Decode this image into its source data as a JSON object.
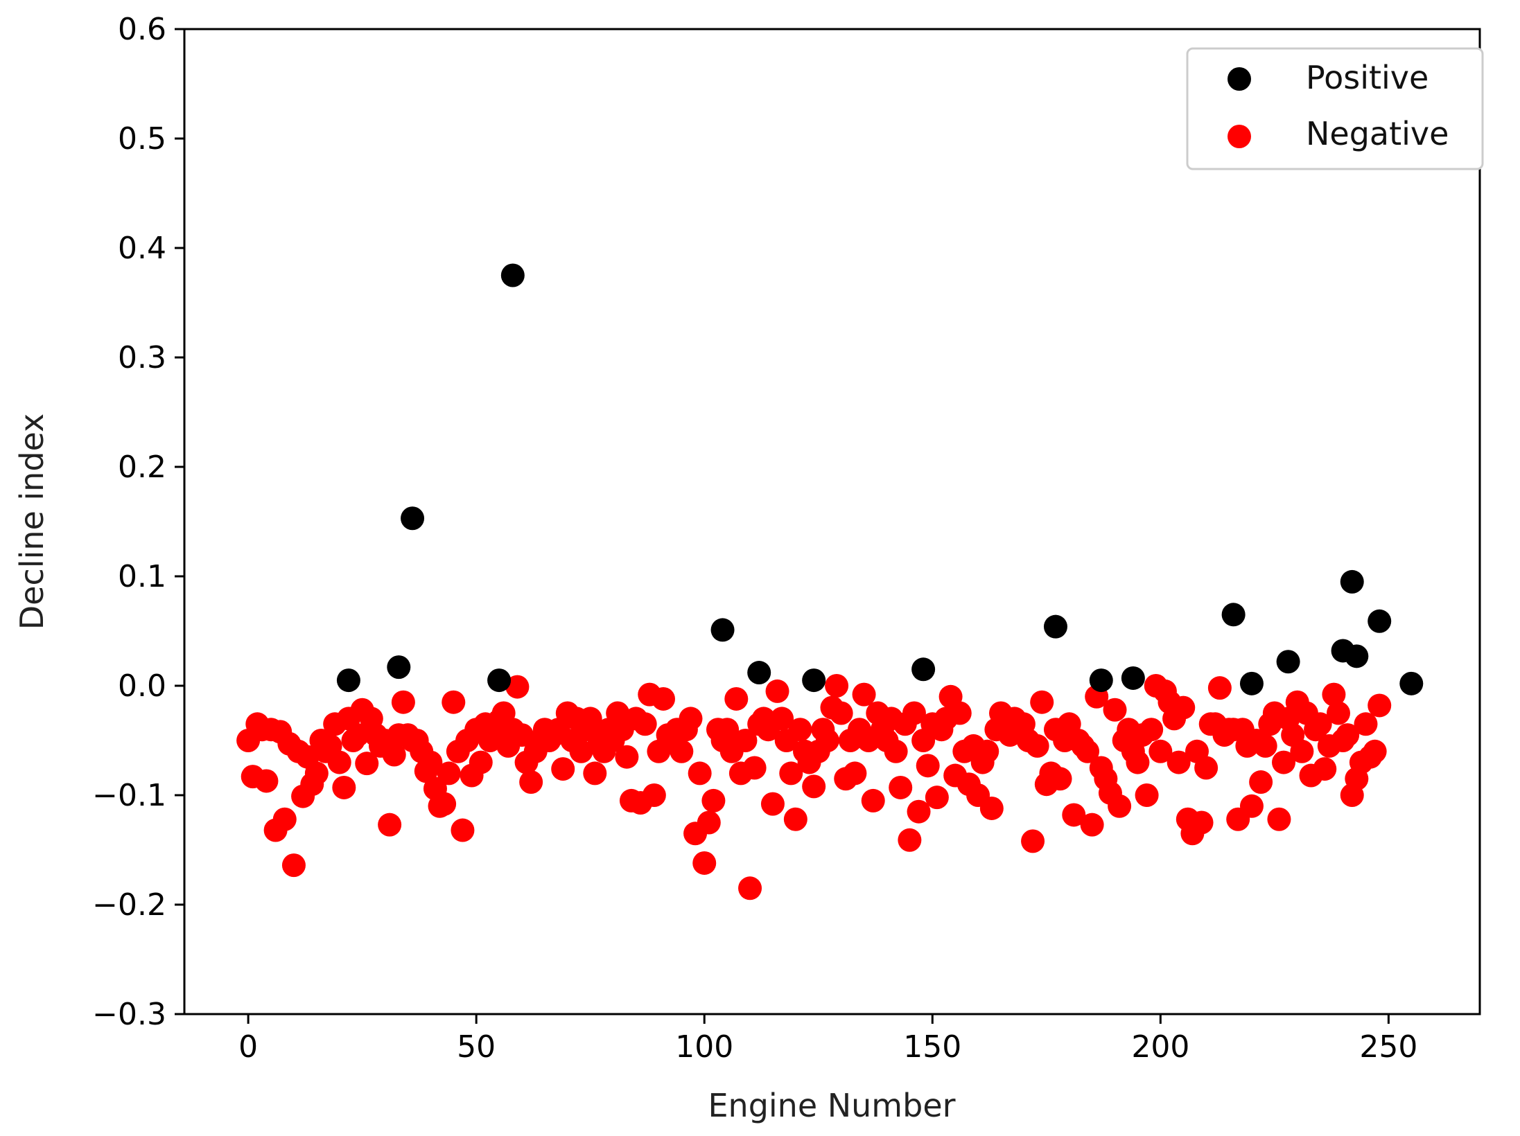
{
  "chart_data": {
    "type": "scatter",
    "title": "",
    "xlabel": "Engine Number",
    "ylabel": "Decline index",
    "xlim": [
      -14,
      270
    ],
    "ylim": [
      -0.3,
      0.6
    ],
    "x_ticks": [
      0,
      50,
      100,
      150,
      200,
      250
    ],
    "x_tick_labels": [
      "0",
      "50",
      "100",
      "150",
      "200",
      "250"
    ],
    "y_ticks": [
      -0.3,
      -0.2,
      -0.1,
      0.0,
      0.1,
      0.2,
      0.3,
      0.4,
      0.5,
      0.6
    ],
    "y_tick_labels": [
      "−0.3",
      "−0.2",
      "−0.1",
      "0.0",
      "0.1",
      "0.2",
      "0.3",
      "0.4",
      "0.5",
      "0.6"
    ],
    "grid": false,
    "legend_position": "top-right",
    "series": [
      {
        "name": "Positive",
        "color": "#000000",
        "points": [
          [
            22,
            0.005
          ],
          [
            33,
            0.017
          ],
          [
            36,
            0.153
          ],
          [
            55,
            0.005
          ],
          [
            58,
            0.375
          ],
          [
            104,
            0.051
          ],
          [
            112,
            0.012
          ],
          [
            124,
            0.005
          ],
          [
            148,
            0.015
          ],
          [
            177,
            0.054
          ],
          [
            187,
            0.005
          ],
          [
            194,
            0.007
          ],
          [
            216,
            0.065
          ],
          [
            220,
            0.002
          ],
          [
            228,
            0.022
          ],
          [
            240,
            0.032
          ],
          [
            242,
            0.095
          ],
          [
            243,
            0.027
          ],
          [
            248,
            0.059
          ],
          [
            255,
            0.002
          ]
        ]
      },
      {
        "name": "Negative",
        "color": "#ff0000",
        "points": [
          [
            0,
            -0.05
          ],
          [
            1,
            -0.083
          ],
          [
            2,
            -0.035
          ],
          [
            3,
            -0.04
          ],
          [
            4,
            -0.087
          ],
          [
            5,
            -0.04
          ],
          [
            6,
            -0.132
          ],
          [
            7,
            -0.042
          ],
          [
            8,
            -0.122
          ],
          [
            9,
            -0.053
          ],
          [
            10,
            -0.164
          ],
          [
            11,
            -0.06
          ],
          [
            12,
            -0.101
          ],
          [
            13,
            -0.065
          ],
          [
            14,
            -0.09
          ],
          [
            15,
            -0.08
          ],
          [
            16,
            -0.05
          ],
          [
            17,
            -0.06
          ],
          [
            18,
            -0.055
          ],
          [
            19,
            -0.035
          ],
          [
            20,
            -0.07
          ],
          [
            21,
            -0.093
          ],
          [
            22,
            -0.03
          ],
          [
            23,
            -0.05
          ],
          [
            24,
            -0.045
          ],
          [
            25,
            -0.022
          ],
          [
            26,
            -0.071
          ],
          [
            27,
            -0.03
          ],
          [
            28,
            -0.045
          ],
          [
            29,
            -0.055
          ],
          [
            30,
            -0.05
          ],
          [
            31,
            -0.127
          ],
          [
            32,
            -0.063
          ],
          [
            33,
            -0.045
          ],
          [
            34,
            -0.015
          ],
          [
            35,
            -0.045
          ],
          [
            36,
            -0.05
          ],
          [
            37,
            -0.05
          ],
          [
            38,
            -0.06
          ],
          [
            39,
            -0.078
          ],
          [
            40,
            -0.07
          ],
          [
            41,
            -0.094
          ],
          [
            42,
            -0.11
          ],
          [
            43,
            -0.108
          ],
          [
            44,
            -0.08
          ],
          [
            45,
            -0.015
          ],
          [
            46,
            -0.06
          ],
          [
            47,
            -0.132
          ],
          [
            48,
            -0.05
          ],
          [
            49,
            -0.082
          ],
          [
            50,
            -0.04
          ],
          [
            51,
            -0.07
          ],
          [
            52,
            -0.035
          ],
          [
            53,
            -0.05
          ],
          [
            54,
            -0.045
          ],
          [
            55,
            -0.032
          ],
          [
            56,
            -0.025
          ],
          [
            57,
            -0.055
          ],
          [
            58,
            -0.04
          ],
          [
            59,
            -0.001
          ],
          [
            60,
            -0.045
          ],
          [
            61,
            -0.07
          ],
          [
            62,
            -0.088
          ],
          [
            63,
            -0.06
          ],
          [
            64,
            -0.05
          ],
          [
            65,
            -0.04
          ],
          [
            66,
            -0.05
          ],
          [
            67,
            -0.045
          ],
          [
            68,
            -0.04
          ],
          [
            69,
            -0.076
          ],
          [
            70,
            -0.025
          ],
          [
            71,
            -0.05
          ],
          [
            72,
            -0.03
          ],
          [
            73,
            -0.06
          ],
          [
            74,
            -0.04
          ],
          [
            75,
            -0.03
          ],
          [
            76,
            -0.08
          ],
          [
            77,
            -0.05
          ],
          [
            78,
            -0.06
          ],
          [
            79,
            -0.04
          ],
          [
            80,
            -0.05
          ],
          [
            81,
            -0.025
          ],
          [
            82,
            -0.04
          ],
          [
            83,
            -0.065
          ],
          [
            84,
            -0.105
          ],
          [
            85,
            -0.03
          ],
          [
            86,
            -0.107
          ],
          [
            87,
            -0.035
          ],
          [
            88,
            -0.008
          ],
          [
            89,
            -0.1
          ],
          [
            90,
            -0.06
          ],
          [
            91,
            -0.012
          ],
          [
            92,
            -0.045
          ],
          [
            93,
            -0.05
          ],
          [
            94,
            -0.04
          ],
          [
            95,
            -0.06
          ],
          [
            96,
            -0.04
          ],
          [
            97,
            -0.03
          ],
          [
            98,
            -0.135
          ],
          [
            99,
            -0.08
          ],
          [
            100,
            -0.162
          ],
          [
            101,
            -0.125
          ],
          [
            102,
            -0.105
          ],
          [
            103,
            -0.04
          ],
          [
            104,
            -0.05
          ],
          [
            105,
            -0.04
          ],
          [
            106,
            -0.06
          ],
          [
            107,
            -0.012
          ],
          [
            108,
            -0.08
          ],
          [
            109,
            -0.05
          ],
          [
            110,
            -0.185
          ],
          [
            111,
            -0.075
          ],
          [
            112,
            -0.035
          ],
          [
            113,
            -0.03
          ],
          [
            114,
            -0.04
          ],
          [
            115,
            -0.108
          ],
          [
            116,
            -0.005
          ],
          [
            117,
            -0.03
          ],
          [
            118,
            -0.05
          ],
          [
            119,
            -0.08
          ],
          [
            120,
            -0.122
          ],
          [
            121,
            -0.04
          ],
          [
            122,
            -0.06
          ],
          [
            123,
            -0.07
          ],
          [
            124,
            -0.092
          ],
          [
            125,
            -0.06
          ],
          [
            126,
            -0.04
          ],
          [
            127,
            -0.05
          ],
          [
            128,
            -0.02
          ],
          [
            129,
            0.0
          ],
          [
            130,
            -0.025
          ],
          [
            131,
            -0.085
          ],
          [
            132,
            -0.05
          ],
          [
            133,
            -0.08
          ],
          [
            134,
            -0.04
          ],
          [
            135,
            -0.008
          ],
          [
            136,
            -0.05
          ],
          [
            137,
            -0.105
          ],
          [
            138,
            -0.025
          ],
          [
            139,
            -0.04
          ],
          [
            140,
            -0.05
          ],
          [
            141,
            -0.03
          ],
          [
            142,
            -0.06
          ],
          [
            143,
            -0.093
          ],
          [
            144,
            -0.035
          ],
          [
            145,
            -0.141
          ],
          [
            146,
            -0.025
          ],
          [
            147,
            -0.115
          ],
          [
            148,
            -0.05
          ],
          [
            149,
            -0.073
          ],
          [
            150,
            -0.035
          ],
          [
            151,
            -0.102
          ],
          [
            152,
            -0.04
          ],
          [
            153,
            -0.03
          ],
          [
            154,
            -0.01
          ],
          [
            155,
            -0.082
          ],
          [
            156,
            -0.025
          ],
          [
            157,
            -0.06
          ],
          [
            158,
            -0.09
          ],
          [
            159,
            -0.055
          ],
          [
            160,
            -0.1
          ],
          [
            161,
            -0.07
          ],
          [
            162,
            -0.06
          ],
          [
            163,
            -0.112
          ],
          [
            164,
            -0.04
          ],
          [
            165,
            -0.025
          ],
          [
            166,
            -0.035
          ],
          [
            167,
            -0.045
          ],
          [
            168,
            -0.03
          ],
          [
            169,
            -0.04
          ],
          [
            170,
            -0.035
          ],
          [
            171,
            -0.05
          ],
          [
            172,
            -0.142
          ],
          [
            173,
            -0.055
          ],
          [
            174,
            -0.015
          ],
          [
            175,
            -0.09
          ],
          [
            176,
            -0.08
          ],
          [
            177,
            -0.04
          ],
          [
            178,
            -0.085
          ],
          [
            179,
            -0.05
          ],
          [
            180,
            -0.035
          ],
          [
            181,
            -0.118
          ],
          [
            182,
            -0.05
          ],
          [
            183,
            -0.055
          ],
          [
            184,
            -0.06
          ],
          [
            185,
            -0.127
          ],
          [
            186,
            -0.01
          ],
          [
            187,
            -0.075
          ],
          [
            188,
            -0.085
          ],
          [
            189,
            -0.098
          ],
          [
            190,
            -0.022
          ],
          [
            191,
            -0.11
          ],
          [
            192,
            -0.05
          ],
          [
            193,
            -0.04
          ],
          [
            194,
            -0.06
          ],
          [
            195,
            -0.07
          ],
          [
            196,
            -0.045
          ],
          [
            197,
            -0.1
          ],
          [
            198,
            -0.04
          ],
          [
            199,
            0.0
          ],
          [
            200,
            -0.06
          ],
          [
            201,
            -0.005
          ],
          [
            202,
            -0.015
          ],
          [
            203,
            -0.03
          ],
          [
            204,
            -0.07
          ],
          [
            205,
            -0.02
          ],
          [
            206,
            -0.122
          ],
          [
            207,
            -0.135
          ],
          [
            208,
            -0.06
          ],
          [
            209,
            -0.125
          ],
          [
            210,
            -0.075
          ],
          [
            211,
            -0.035
          ],
          [
            212,
            -0.035
          ],
          [
            213,
            -0.002
          ],
          [
            214,
            -0.045
          ],
          [
            215,
            -0.04
          ],
          [
            216,
            -0.04
          ],
          [
            217,
            -0.122
          ],
          [
            218,
            -0.04
          ],
          [
            219,
            -0.055
          ],
          [
            220,
            -0.11
          ],
          [
            221,
            -0.05
          ],
          [
            222,
            -0.088
          ],
          [
            223,
            -0.055
          ],
          [
            224,
            -0.035
          ],
          [
            225,
            -0.025
          ],
          [
            226,
            -0.122
          ],
          [
            227,
            -0.07
          ],
          [
            228,
            -0.03
          ],
          [
            229,
            -0.045
          ],
          [
            230,
            -0.015
          ],
          [
            231,
            -0.06
          ],
          [
            232,
            -0.025
          ],
          [
            233,
            -0.082
          ],
          [
            234,
            -0.04
          ],
          [
            235,
            -0.035
          ],
          [
            236,
            -0.076
          ],
          [
            237,
            -0.055
          ],
          [
            238,
            -0.008
          ],
          [
            239,
            -0.025
          ],
          [
            240,
            -0.05
          ],
          [
            241,
            -0.045
          ],
          [
            242,
            -0.1
          ],
          [
            243,
            -0.085
          ],
          [
            244,
            -0.07
          ],
          [
            245,
            -0.035
          ],
          [
            246,
            -0.065
          ],
          [
            247,
            -0.06
          ],
          [
            248,
            -0.018
          ]
        ]
      }
    ]
  }
}
